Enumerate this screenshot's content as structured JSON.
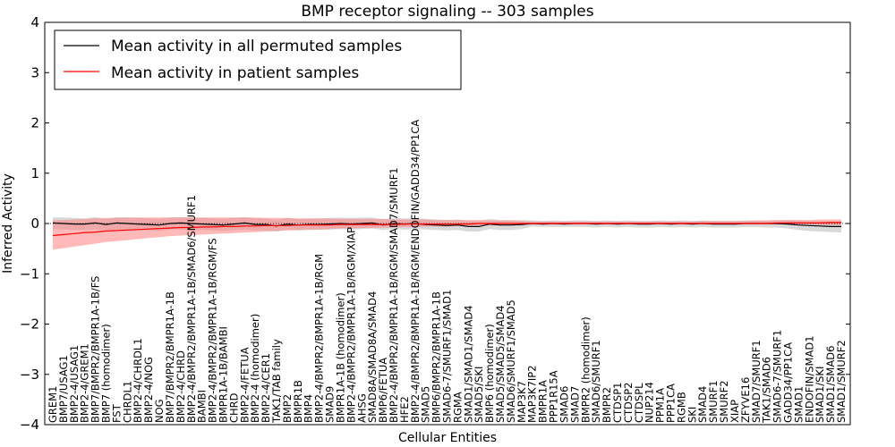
{
  "chart_data": {
    "type": "line",
    "title": "BMP receptor signaling -- 303 samples",
    "xlabel": "Cellular Entities",
    "ylabel": "Inferred Activity",
    "ylim": [
      -4,
      4
    ],
    "yticks": [
      -4,
      -3,
      -2,
      -1,
      0,
      1,
      2,
      3,
      4
    ],
    "ytick_labels": [
      "−4",
      "−3",
      "−2",
      "−1",
      "0",
      "1",
      "2",
      "3",
      "4"
    ],
    "legend_position": "top-left",
    "categories": [
      "GREM1",
      "BMP7/USAG1",
      "BMP2-4/USAG1",
      "BMP2-4/GREM1",
      "BMP7/BMPR2/BMPR1A-1B/FS",
      "BMP7 (homodimer)",
      "FST",
      "CHRDL1",
      "BMP2-4/CHRDL1",
      "BMP2-4/NOG",
      "NOG",
      "BMP7/BMPR2/BMPR1A-1B",
      "BMP2-4/CHRD",
      "BMP2-4/BMPR2/BMPR1A-1B/SMAD6/SMURF1",
      "BAMBI",
      "BMP2-4/BMPR2/BMPR1A-1B/RGM/FS",
      "BMPR1A-1B/BAMBI",
      "CHRD",
      "BMP2-4/FETUA",
      "BMP2-4 (homodimer)",
      "BMP2-4/CER1",
      "TAK1/TAB family",
      "BMP2",
      "BMPR1B",
      "BMP4",
      "BMP2-4/BMPR2/BMPR1A-1B/RGM",
      "SMAD9",
      "BMPR1A-1B (homodimer)",
      "BMP2-4/BMPR2/BMPR1A-1B/RGM/XIAP",
      "AHSG",
      "SMAD8A/SMAD8A/SMAD4",
      "BMP6/FETUA",
      "BMP2-4/BMPR2/BMPR1A-1B/RGM/SMAD7/SMURF1",
      "HFE2",
      "BMP2-4/BMPR2/BMPR1A-1B/RGM/ENDOFIN/GADD34/PP1CA",
      "SMAD5",
      "BMP6/BMPR2/BMPR1A-1B",
      "SMAD6-7/SMURF1/SMAD1",
      "RGMA",
      "SMAD1/SMAD1/SMAD4",
      "SMAD5/SKI",
      "BMP6 (homodimer)",
      "SMAD5/SMAD5/SMAD4",
      "SMAD6/SMURF1/SMAD5",
      "MAP3K7",
      "MAP3K7IP2",
      "BMPR1A",
      "PPP1R15A",
      "SMAD6",
      "SMAD7",
      "BMPR2 (homodimer)",
      "SMAD6/SMURF1",
      "BMPR2",
      "CTDSP1",
      "CTDSP2",
      "CTDSPL",
      "NUP214",
      "PPM1A",
      "PPP1CA",
      "RGMB",
      "SKI",
      "SMAD4",
      "SMURF1",
      "SMURF2",
      "XIAP",
      "ZFYVE16",
      "SMAD7/SMURF1",
      "TAK1/SMAD6",
      "SMAD6-7/SMURF1",
      "GADD34/PP1CA",
      "SMAD1",
      "ENDOFIN/SMAD1",
      "SMAD1/SKI",
      "SMAD1/SMAD6",
      "SMAD1/SMURF2"
    ],
    "series": [
      {
        "name": "Mean activity in all permuted samples",
        "color": "#000000",
        "band_color": "#bfbfbf",
        "values": [
          0.01,
          0.0,
          -0.01,
          -0.01,
          0.01,
          -0.02,
          0.01,
          0.0,
          -0.01,
          -0.02,
          -0.03,
          0.0,
          0.01,
          0.0,
          -0.01,
          -0.02,
          -0.03,
          -0.01,
          0.01,
          -0.02,
          -0.02,
          -0.05,
          -0.01,
          -0.03,
          -0.02,
          -0.02,
          -0.01,
          0.0,
          -0.01,
          0.0,
          0.01,
          -0.03,
          0.0,
          -0.01,
          0.0,
          -0.02,
          -0.03,
          -0.04,
          -0.03,
          -0.06,
          -0.06,
          -0.01,
          -0.03,
          -0.03,
          -0.02,
          0.0,
          -0.01,
          0.0,
          -0.01,
          0.0,
          0.0,
          -0.01,
          0.0,
          -0.01,
          0.0,
          -0.01,
          -0.01,
          0.0,
          -0.01,
          0.0,
          -0.01,
          0.0,
          -0.01,
          -0.01,
          -0.01,
          0.0,
          0.0,
          0.0,
          0.0,
          -0.01,
          -0.03,
          -0.04,
          -0.05,
          -0.06,
          -0.06
        ],
        "lower": [
          -0.11,
          -0.12,
          -0.13,
          -0.12,
          -0.12,
          -0.13,
          -0.12,
          -0.12,
          -0.13,
          -0.14,
          -0.15,
          -0.12,
          -0.12,
          -0.12,
          -0.13,
          -0.14,
          -0.15,
          -0.13,
          -0.12,
          -0.14,
          -0.14,
          -0.16,
          -0.12,
          -0.14,
          -0.13,
          -0.13,
          -0.12,
          -0.11,
          -0.12,
          -0.11,
          -0.1,
          -0.13,
          -0.11,
          -0.12,
          -0.11,
          -0.12,
          -0.13,
          -0.14,
          -0.13,
          -0.16,
          -0.16,
          -0.11,
          -0.13,
          -0.13,
          -0.11,
          -0.06,
          -0.07,
          -0.07,
          -0.07,
          -0.07,
          -0.07,
          -0.08,
          -0.07,
          -0.08,
          -0.07,
          -0.08,
          -0.08,
          -0.07,
          -0.08,
          -0.07,
          -0.08,
          -0.07,
          -0.08,
          -0.08,
          -0.08,
          -0.07,
          -0.07,
          -0.08,
          -0.08,
          -0.1,
          -0.13,
          -0.15,
          -0.16,
          -0.17,
          -0.18
        ],
        "upper": [
          0.12,
          0.12,
          0.11,
          0.1,
          0.13,
          0.09,
          0.13,
          0.12,
          0.11,
          0.1,
          0.09,
          0.12,
          0.13,
          0.12,
          0.11,
          0.1,
          0.09,
          0.11,
          0.13,
          0.1,
          0.1,
          0.07,
          0.11,
          0.09,
          0.1,
          0.1,
          0.11,
          0.12,
          0.11,
          0.12,
          0.12,
          0.08,
          0.11,
          0.1,
          0.11,
          0.09,
          0.08,
          0.07,
          0.08,
          0.05,
          0.05,
          0.09,
          0.07,
          0.07,
          0.07,
          0.06,
          0.05,
          0.06,
          0.05,
          0.06,
          0.06,
          0.05,
          0.06,
          0.05,
          0.06,
          0.05,
          0.05,
          0.06,
          0.05,
          0.06,
          0.05,
          0.06,
          0.05,
          0.05,
          0.05,
          0.06,
          0.06,
          0.06,
          0.06,
          0.07,
          0.06,
          0.05,
          0.05,
          0.04,
          0.04
        ]
      },
      {
        "name": "Mean activity in patient samples",
        "color": "#ff0000",
        "band_color": "#ff8080",
        "values": [
          -0.24,
          -0.22,
          -0.2,
          -0.18,
          -0.17,
          -0.15,
          -0.14,
          -0.13,
          -0.12,
          -0.11,
          -0.1,
          -0.09,
          -0.08,
          -0.08,
          -0.07,
          -0.07,
          -0.06,
          -0.06,
          -0.05,
          -0.05,
          -0.04,
          -0.04,
          -0.04,
          -0.03,
          -0.03,
          -0.03,
          -0.03,
          -0.02,
          -0.02,
          -0.02,
          -0.02,
          -0.02,
          -0.02,
          -0.01,
          -0.01,
          -0.01,
          -0.01,
          -0.01,
          -0.01,
          -0.01,
          0.0,
          0.0,
          0.0,
          0.0,
          0.0,
          0.0,
          0.0,
          0.0,
          0.0,
          0.0,
          0.0,
          0.0,
          0.0,
          0.0,
          0.0,
          0.0,
          0.0,
          0.0,
          0.0,
          0.0,
          0.0,
          0.0,
          0.0,
          0.0,
          0.0,
          0.0,
          0.0,
          0.0,
          0.01,
          0.01,
          0.01,
          0.01,
          0.01,
          0.02,
          0.02
        ],
        "lower": [
          -0.52,
          -0.49,
          -0.46,
          -0.43,
          -0.4,
          -0.37,
          -0.35,
          -0.33,
          -0.31,
          -0.29,
          -0.27,
          -0.25,
          -0.24,
          -0.23,
          -0.22,
          -0.21,
          -0.2,
          -0.19,
          -0.18,
          -0.17,
          -0.16,
          -0.15,
          -0.14,
          -0.13,
          -0.12,
          -0.12,
          -0.11,
          -0.1,
          -0.1,
          -0.09,
          -0.09,
          -0.08,
          -0.08,
          -0.07,
          -0.07,
          -0.06,
          -0.06,
          -0.06,
          -0.05,
          -0.05,
          -0.04,
          -0.04,
          -0.04,
          -0.03,
          -0.03,
          -0.02,
          -0.02,
          -0.02,
          -0.02,
          -0.02,
          -0.02,
          -0.02,
          -0.02,
          -0.02,
          -0.02,
          -0.02,
          -0.02,
          -0.02,
          -0.02,
          -0.02,
          -0.02,
          -0.02,
          -0.02,
          -0.02,
          -0.02,
          -0.02,
          -0.02,
          -0.02,
          -0.02,
          -0.02,
          -0.02,
          -0.02,
          -0.03,
          -0.03,
          -0.03
        ],
        "upper": [
          0.06,
          0.07,
          0.08,
          0.09,
          0.1,
          0.11,
          0.11,
          0.12,
          0.12,
          0.12,
          0.12,
          0.12,
          0.12,
          0.12,
          0.12,
          0.12,
          0.12,
          0.12,
          0.12,
          0.12,
          0.11,
          0.11,
          0.11,
          0.1,
          0.1,
          0.1,
          0.1,
          0.09,
          0.09,
          0.09,
          0.09,
          0.09,
          0.08,
          0.08,
          0.08,
          0.08,
          0.07,
          0.07,
          0.07,
          0.07,
          0.07,
          0.06,
          0.06,
          0.06,
          0.05,
          0.04,
          0.04,
          0.04,
          0.04,
          0.04,
          0.04,
          0.04,
          0.04,
          0.04,
          0.04,
          0.04,
          0.04,
          0.04,
          0.04,
          0.04,
          0.04,
          0.05,
          0.05,
          0.05,
          0.05,
          0.05,
          0.06,
          0.06,
          0.07,
          0.07,
          0.07,
          0.07,
          0.08,
          0.08,
          0.08
        ]
      }
    ]
  }
}
